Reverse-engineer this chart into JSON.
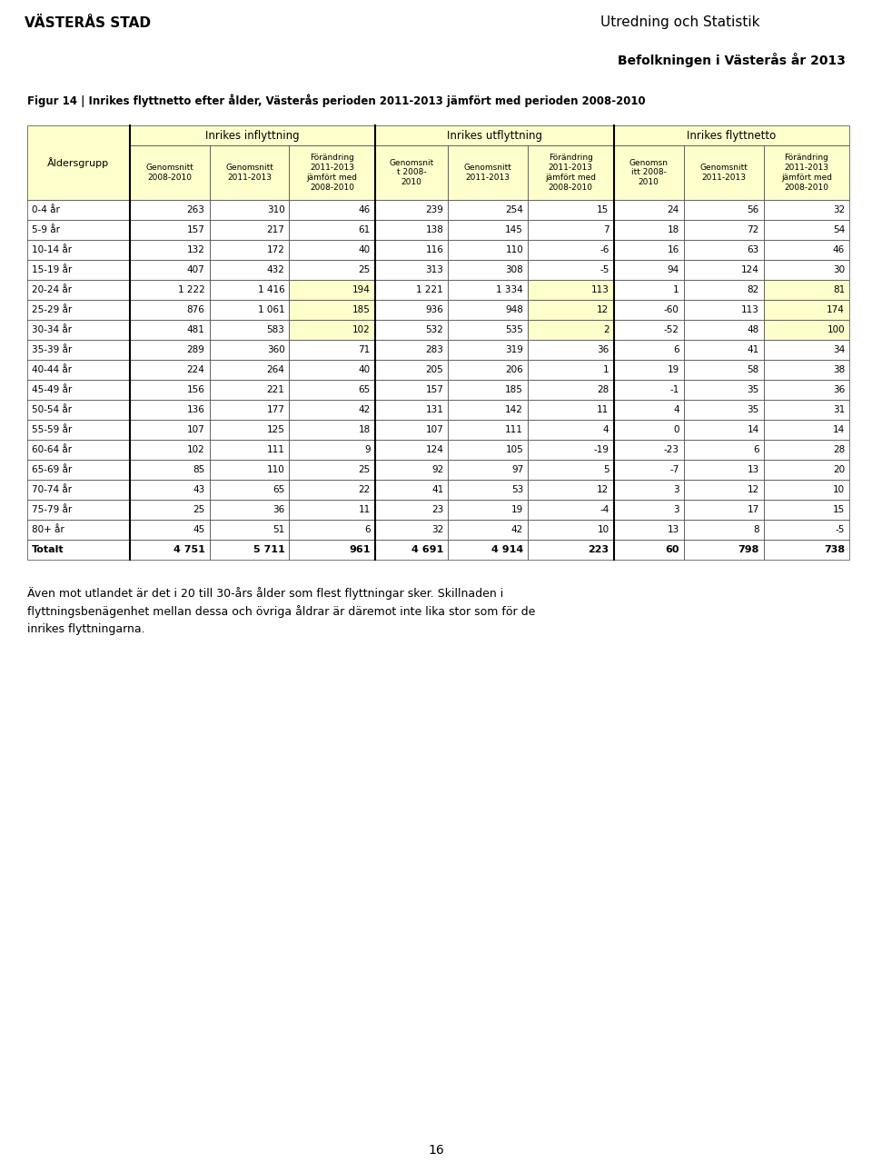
{
  "header_left": "VÄSTERÅS STAD",
  "header_right_top": "Utredning och Statistik",
  "header_right_bottom": "Befolkningen i Västerås år 2013",
  "header_right_bg": "#d4de9a",
  "figure_title": "Figur 14 | Inrikes flyttnetto efter ålder, Västerås perioden 2011-2013 jämfört med perioden 2008-2010",
  "section_headers": [
    "Inrikes inflyttning",
    "Inrikes utflyttning",
    "Inrikes flyttnetto"
  ],
  "col_headers": [
    "Åldersgrupp",
    "Genomsnitt\n2008-2010",
    "Genomsnitt\n2011-2013",
    "Förändring\n2011-2013\njämfört med\n2008-2010",
    "Genomsnit\nt 2008-\n2010",
    "Genomsnitt\n2011-2013",
    "Förändring\n2011-2013\njämfört med\n2008-2010",
    "Genomsn\nitt 2008-\n2010",
    "Genomsnitt\n2011-2013",
    "Förändring\n2011-2013\njämfört med\n2008-2010"
  ],
  "rows": [
    [
      "0-4 år",
      "263",
      "310",
      "46",
      "239",
      "254",
      "15",
      "24",
      "56",
      "32"
    ],
    [
      "5-9 år",
      "157",
      "217",
      "61",
      "138",
      "145",
      "7",
      "18",
      "72",
      "54"
    ],
    [
      "10-14 år",
      "132",
      "172",
      "40",
      "116",
      "110",
      "-6",
      "16",
      "63",
      "46"
    ],
    [
      "15-19 år",
      "407",
      "432",
      "25",
      "313",
      "308",
      "-5",
      "94",
      "124",
      "30"
    ],
    [
      "20-24 år",
      "1 222",
      "1 416",
      "194",
      "1 221",
      "1 334",
      "113",
      "1",
      "82",
      "81"
    ],
    [
      "25-29 år",
      "876",
      "1 061",
      "185",
      "936",
      "948",
      "12",
      "-60",
      "113",
      "174"
    ],
    [
      "30-34 år",
      "481",
      "583",
      "102",
      "532",
      "535",
      "2",
      "-52",
      "48",
      "100"
    ],
    [
      "35-39 år",
      "289",
      "360",
      "71",
      "283",
      "319",
      "36",
      "6",
      "41",
      "34"
    ],
    [
      "40-44 år",
      "224",
      "264",
      "40",
      "205",
      "206",
      "1",
      "19",
      "58",
      "38"
    ],
    [
      "45-49 år",
      "156",
      "221",
      "65",
      "157",
      "185",
      "28",
      "-1",
      "35",
      "36"
    ],
    [
      "50-54 år",
      "136",
      "177",
      "42",
      "131",
      "142",
      "11",
      "4",
      "35",
      "31"
    ],
    [
      "55-59 år",
      "107",
      "125",
      "18",
      "107",
      "111",
      "4",
      "0",
      "14",
      "14"
    ],
    [
      "60-64 år",
      "102",
      "111",
      "9",
      "124",
      "105",
      "-19",
      "-23",
      "6",
      "28"
    ],
    [
      "65-69 år",
      "85",
      "110",
      "25",
      "92",
      "97",
      "5",
      "-7",
      "13",
      "20"
    ],
    [
      "70-74 år",
      "43",
      "65",
      "22",
      "41",
      "53",
      "12",
      "3",
      "12",
      "10"
    ],
    [
      "75-79 år",
      "25",
      "36",
      "11",
      "23",
      "19",
      "-4",
      "3",
      "17",
      "15"
    ],
    [
      "80+ år",
      "45",
      "51",
      "6",
      "32",
      "42",
      "10",
      "13",
      "8",
      "-5"
    ],
    [
      "Totalt",
      "4 751",
      "5 711",
      "961",
      "4 691",
      "4 914",
      "223",
      "60",
      "798",
      "738"
    ]
  ],
  "highlight_rows": [
    4,
    5,
    6
  ],
  "highlight_cols_idx": [
    3,
    6,
    9
  ],
  "highlight_color": "#ffffcc",
  "header_bg": "#ffffcc",
  "footer_text1": "Även mot utlandet är det i 20 till 30-års ålder som flest flyttningar sker. Skillnaden i",
  "footer_text2": "flyttningsbenägenhet mellan dessa och övriga åldrar är däremot inte lika stor som för de",
  "footer_text3": "inrikes flyttningarna.",
  "page_number": "16",
  "separator_color": "#b8c060",
  "border_color": "#404040"
}
